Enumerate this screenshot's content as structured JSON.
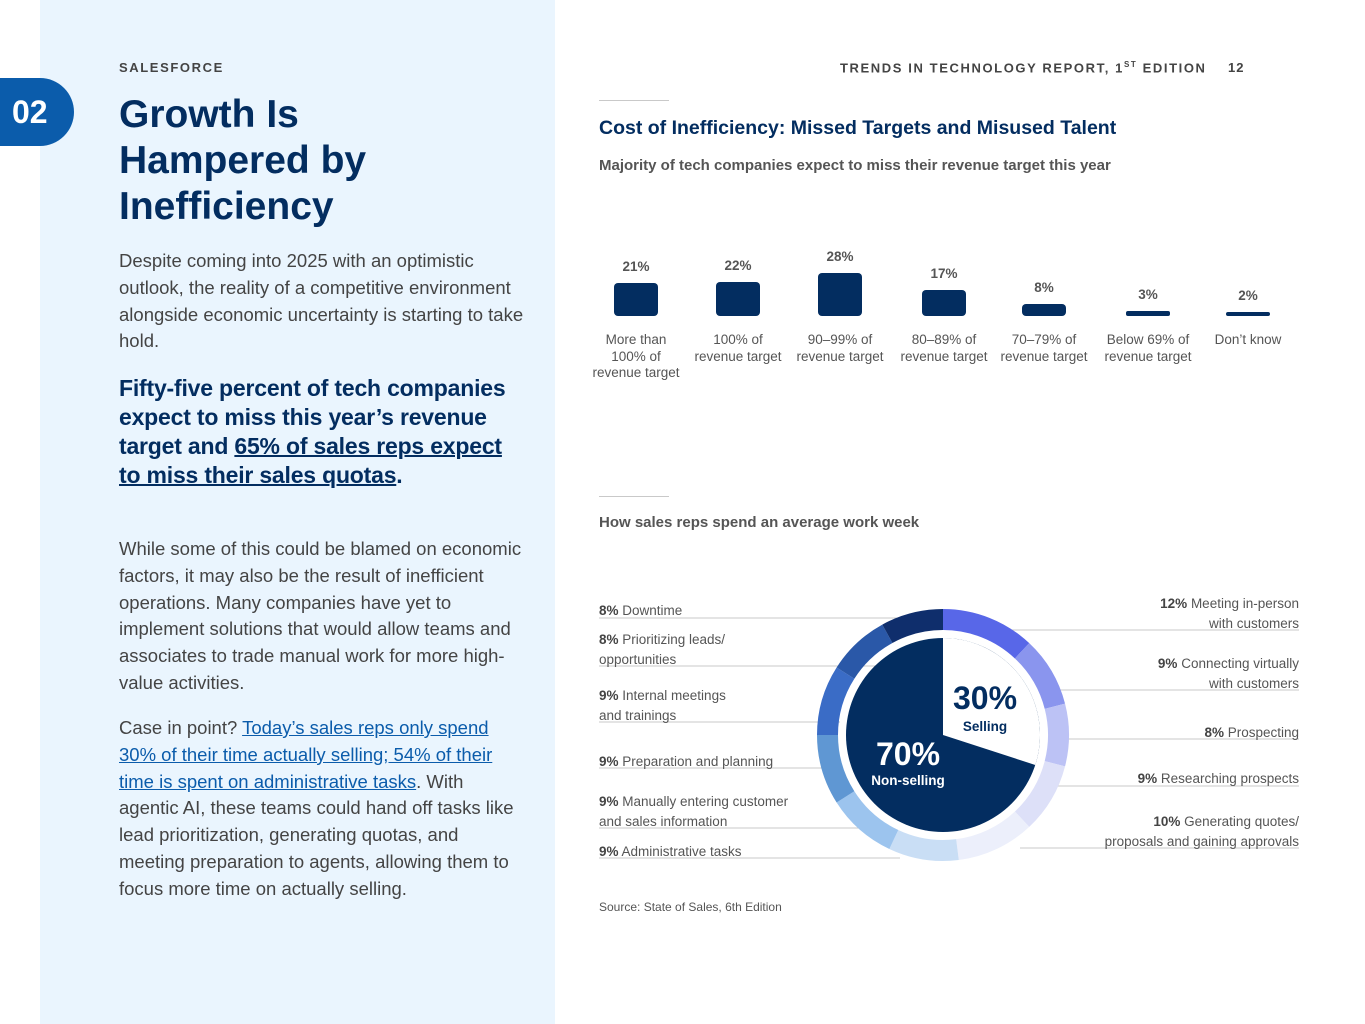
{
  "left": {
    "chapter": "02",
    "brand": "SALESFORCE",
    "headline": [
      "Growth Is",
      "Hampered by",
      "Inefficiency"
    ],
    "intro": "Despite coming into 2025 with an optimistic outlook, the reality of a competitive environment alongside economic uncertainty is starting to take hold.",
    "callout_plain": "Fifty-five percent of tech companies expect to miss this year’s revenue target and ",
    "callout_underlined": "65% of sales reps expect to miss their sales quotas",
    "callout_end": ".",
    "para2": "While some of this could be blamed on economic factors, it may also be the result of inefficient operations. Many companies have yet to implement solutions that would allow teams and associates to trade manual work for more high-value activities.",
    "para3_start": "Case in point? ",
    "para3_link": "Today’s sales reps only spend 30% of their time actually selling; 54% of their time is spent on administrative tasks",
    "para3_end": ". With agentic AI, these teams could hand off tasks like lead prioritization, generating quotas, and meeting preparation to agents, allowing them to focus more time on actually selling."
  },
  "header": {
    "report_title": "TRENDS IN TECHNOLOGY REPORT, 1",
    "report_sup": "ST",
    "report_edition": " EDITION",
    "page_number": "12"
  },
  "section": {
    "title": "Cost of Inefficiency: Missed Targets and Misused Talent",
    "bar_subtitle": "Majority of tech companies expect to miss their revenue target this year",
    "donut_subtitle": "How sales reps spend an average work week",
    "source": "Source: State of Sales, 6th Edition"
  },
  "chart_data": [
    {
      "type": "bar",
      "title": "Majority of tech companies expect to miss their revenue target this year",
      "categories": [
        "More than 100% of revenue target",
        "100% of revenue target",
        "90–99% of revenue target",
        "80–89% of revenue target",
        "70–79% of revenue target",
        "Below 69% of revenue target",
        "Don’t know"
      ],
      "values": [
        21,
        22,
        28,
        17,
        8,
        3,
        2
      ],
      "value_labels": [
        "21%",
        "22%",
        "28%",
        "17%",
        "8%",
        "3%",
        "2%"
      ],
      "category_lines": [
        [
          "More than",
          "100% of",
          "revenue target"
        ],
        [
          "100% of",
          "revenue target"
        ],
        [
          "90–99% of",
          "revenue target"
        ],
        [
          "80–89% of",
          "revenue target"
        ],
        [
          "70–79% of",
          "revenue target"
        ],
        [
          "Below 69% of",
          "revenue target"
        ],
        [
          "Don’t know"
        ]
      ],
      "bar_color": "#032d60"
    },
    {
      "type": "pie",
      "title": "How sales reps spend an average work week",
      "inner": [
        {
          "name": "Selling",
          "value": 30,
          "label": "30%"
        },
        {
          "name": "Non-selling",
          "value": 70,
          "label": "70%"
        }
      ],
      "outer": [
        {
          "pct": "12%",
          "text": [
            "Meeting in-person",
            "with customers"
          ],
          "value": 12,
          "color": "#5867e8",
          "side": "right"
        },
        {
          "pct": "9%",
          "text": [
            "Connecting virtually",
            "with customers"
          ],
          "value": 9,
          "color": "#8a95ee",
          "side": "right"
        },
        {
          "pct": "8%",
          "text": [
            "Prospecting"
          ],
          "value": 8,
          "color": "#bcc2f5",
          "side": "right"
        },
        {
          "pct": "9%",
          "text": [
            "Researching prospects"
          ],
          "value": 9,
          "color": "#dde0f8",
          "side": "right"
        },
        {
          "pct": "10%",
          "text": [
            "Generating quotes/",
            "proposals and gaining approvals"
          ],
          "value": 10,
          "color": "#eceffb",
          "side": "right"
        },
        {
          "pct": "9%",
          "text": [
            "Administrative tasks"
          ],
          "value": 9,
          "color": "#c9def5",
          "side": "left"
        },
        {
          "pct": "9%",
          "text": [
            "Manually entering customer",
            "and sales information"
          ],
          "value": 9,
          "color": "#9cc4ee",
          "side": "left"
        },
        {
          "pct": "9%",
          "text": [
            "Preparation and planning"
          ],
          "value": 9,
          "color": "#5f97d3",
          "side": "left"
        },
        {
          "pct": "9%",
          "text": [
            "Internal meetings",
            "and trainings"
          ],
          "value": 9,
          "color": "#3a6cc6",
          "side": "left"
        },
        {
          "pct": "8%",
          "text": [
            "Prioritizing leads/",
            "opportunities"
          ],
          "value": 8,
          "color": "#2a58a8",
          "side": "left"
        },
        {
          "pct": "8%",
          "text": [
            "Downtime"
          ],
          "value": 8,
          "color": "#0f2e6c",
          "side": "left"
        }
      ]
    }
  ]
}
